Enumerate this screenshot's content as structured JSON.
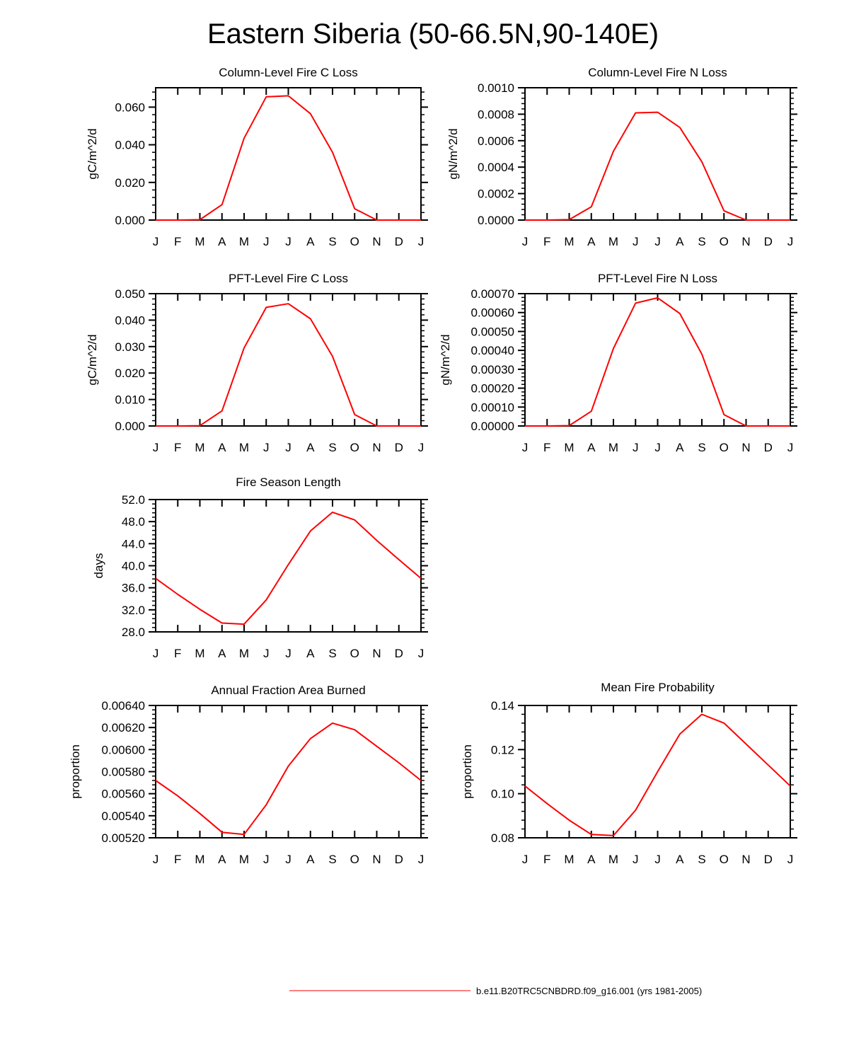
{
  "title": "Eastern Siberia (50-66.5N,90-140E)",
  "legend": {
    "label": "b.e11.B20TRC5CNBDRD.f09_g16.001 (yrs 1981-2005)",
    "color": "#ff0000"
  },
  "line_color": "#ff0000",
  "chart_data": [
    {
      "type": "line",
      "title": "Column-Level Fire C Loss",
      "ylabel": "gC/m^2/d",
      "categories": [
        "J",
        "F",
        "M",
        "A",
        "M",
        "J",
        "J",
        "A",
        "S",
        "O",
        "N",
        "D",
        "J"
      ],
      "ylim": [
        0,
        0.0703
      ],
      "yticks": [
        "0.000",
        "0.020",
        "0.040",
        "0.060"
      ],
      "ytick_values": [
        0,
        0.02,
        0.04,
        0.06
      ],
      "values": [
        0,
        0,
        0.0002,
        0.0082,
        0.0435,
        0.0655,
        0.066,
        0.0565,
        0.036,
        0.006,
        0,
        0,
        0
      ]
    },
    {
      "type": "line",
      "title": "Column-Level Fire N Loss",
      "ylabel": "gN/m^2/d",
      "categories": [
        "J",
        "F",
        "M",
        "A",
        "M",
        "J",
        "J",
        "A",
        "S",
        "O",
        "N",
        "D",
        "J"
      ],
      "ylim": [
        0,
        0.001
      ],
      "yticks": [
        "0.0000",
        "0.0002",
        "0.0004",
        "0.0006",
        "0.0008",
        "0.0010"
      ],
      "ytick_values": [
        0,
        0.0002,
        0.0004,
        0.0006,
        0.0008,
        0.001
      ],
      "values": [
        0,
        0,
        3e-06,
        0.0001,
        0.00052,
        0.00081,
        0.000815,
        0.0007,
        0.00044,
        7e-05,
        0,
        0,
        0
      ]
    },
    {
      "type": "line",
      "title": "PFT-Level Fire C Loss",
      "ylabel": "gC/m^2/d",
      "categories": [
        "J",
        "F",
        "M",
        "A",
        "M",
        "J",
        "J",
        "A",
        "S",
        "O",
        "N",
        "D",
        "J"
      ],
      "ylim": [
        0,
        0.05
      ],
      "yticks": [
        "0.000",
        "0.010",
        "0.020",
        "0.030",
        "0.040",
        "0.050"
      ],
      "ytick_values": [
        0,
        0.01,
        0.02,
        0.03,
        0.04,
        0.05
      ],
      "values": [
        0,
        0,
        0.0001,
        0.0057,
        0.0295,
        0.0448,
        0.0462,
        0.0405,
        0.0263,
        0.0043,
        0,
        0,
        0
      ]
    },
    {
      "type": "line",
      "title": "PFT-Level Fire N Loss",
      "ylabel": "gN/m^2/d",
      "categories": [
        "J",
        "F",
        "M",
        "A",
        "M",
        "J",
        "J",
        "A",
        "S",
        "O",
        "N",
        "D",
        "J"
      ],
      "ylim": [
        0,
        0.0007
      ],
      "yticks": [
        "0.00000",
        "0.00010",
        "0.00020",
        "0.00030",
        "0.00040",
        "0.00050",
        "0.00060",
        "0.00070"
      ],
      "ytick_values": [
        0,
        0.0001,
        0.0002,
        0.0003,
        0.0004,
        0.0005,
        0.0006,
        0.0007
      ],
      "values": [
        0,
        0,
        2e-06,
        7.8e-05,
        0.00041,
        0.00065,
        0.000678,
        0.000595,
        0.00038,
        6e-05,
        0,
        0,
        0
      ]
    },
    {
      "type": "line",
      "title": "Fire Season Length",
      "ylabel": "days",
      "categories": [
        "J",
        "F",
        "M",
        "A",
        "M",
        "J",
        "J",
        "A",
        "S",
        "O",
        "N",
        "D",
        "J"
      ],
      "ylim": [
        28,
        52
      ],
      "yticks": [
        "28.0",
        "32.0",
        "36.0",
        "40.0",
        "44.0",
        "48.0",
        "52.0"
      ],
      "ytick_values": [
        28,
        32,
        36,
        40,
        44,
        48,
        52
      ],
      "values": [
        37.7,
        34.8,
        32.1,
        29.6,
        29.4,
        33.8,
        40.2,
        46.3,
        49.7,
        48.3,
        44.6,
        41.1,
        37.7
      ]
    },
    {
      "type": "line",
      "title": "Annual Fraction Area Burned",
      "ylabel": "proportion",
      "categories": [
        "J",
        "F",
        "M",
        "A",
        "M",
        "J",
        "J",
        "A",
        "S",
        "O",
        "N",
        "D",
        "J"
      ],
      "ylim": [
        0.0052,
        0.0064
      ],
      "yticks": [
        "0.00520",
        "0.00540",
        "0.00560",
        "0.00580",
        "0.00600",
        "0.00620",
        "0.00640"
      ],
      "ytick_values": [
        0.0052,
        0.0054,
        0.0056,
        0.0058,
        0.006,
        0.0062,
        0.0064
      ],
      "values": [
        0.00572,
        0.00558,
        0.00542,
        0.00525,
        0.00523,
        0.0055,
        0.00585,
        0.0061,
        0.00624,
        0.00618,
        0.00603,
        0.00588,
        0.00572
      ]
    },
    {
      "type": "line",
      "title": "Mean Fire Probability",
      "ylabel": "proportion",
      "categories": [
        "J",
        "F",
        "M",
        "A",
        "M",
        "J",
        "J",
        "A",
        "S",
        "O",
        "N",
        "D",
        "J"
      ],
      "ylim": [
        0.08,
        0.14
      ],
      "yticks": [
        "0.08",
        "0.10",
        "0.12",
        "0.14"
      ],
      "ytick_values": [
        0.08,
        0.1,
        0.12,
        0.14
      ],
      "values": [
        0.1035,
        0.0955,
        0.088,
        0.0815,
        0.081,
        0.0925,
        0.11,
        0.127,
        0.136,
        0.132,
        0.1225,
        0.113,
        0.1035
      ]
    }
  ]
}
